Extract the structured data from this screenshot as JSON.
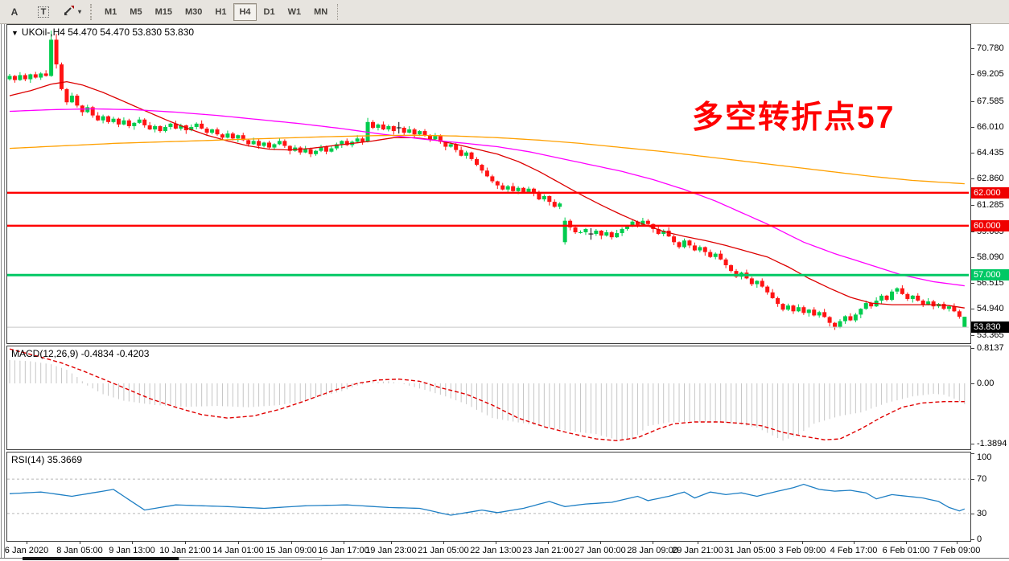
{
  "toolbar": {
    "a_label": "A",
    "t_label": "T",
    "timeframes": [
      "M1",
      "M5",
      "M15",
      "M30",
      "H1",
      "H4",
      "D1",
      "W1",
      "MN"
    ],
    "active_timeframe": "H4"
  },
  "chart": {
    "title": "UKOil-,H4  54.470 54.470 53.830 53.830",
    "symbol": "UKOil-",
    "period": "H4",
    "ohlc": {
      "open": "54.470",
      "high": "54.470",
      "low": "53.830",
      "close": "53.830"
    },
    "annotation": {
      "text": "多空转折点57",
      "color": "#FF0000"
    },
    "y_axis_labels": [
      "70.780",
      "69.205",
      "67.585",
      "66.010",
      "64.435",
      "62.860",
      "61.285",
      "59.665",
      "58.090",
      "56.515",
      "54.940",
      "53.365"
    ],
    "level_badges": [
      {
        "value": "62.000",
        "price": 62.0,
        "bg": "#EF0000"
      },
      {
        "value": "60.000",
        "price": 60.0,
        "bg": "#EF0000"
      },
      {
        "value": "57.000",
        "price": 57.0,
        "bg": "#00C864"
      },
      {
        "value": "53.830",
        "price": 53.83,
        "bg": "#000000"
      }
    ]
  },
  "macd": {
    "text": "MACD(12,26,9) -0.4834 -0.4203",
    "main_value": "-0.4834",
    "signal_value": "-0.4203",
    "axis": [
      "0.8137",
      "0.00",
      "-1.3894"
    ]
  },
  "rsi": {
    "text": "RSI(14) 35.3669",
    "value": "35.3669",
    "axis": [
      "100",
      "70",
      "30",
      "0"
    ],
    "levels": [
      70,
      30
    ]
  },
  "x_axis": {
    "labels": [
      "6 Jan 2020",
      "8 Jan 05:00",
      "9 Jan 13:00",
      "10 Jan 21:00",
      "14 Jan 01:00",
      "15 Jan 09:00",
      "16 Jan 17:00",
      "19 Jan 23:00",
      "21 Jan 05:00",
      "22 Jan 13:00",
      "23 Jan 21:00",
      "27 Jan 00:00",
      "28 Jan 09:00",
      "29 Jan 21:00",
      "31 Jan 05:00",
      "3 Feb 09:00",
      "4 Feb 17:00",
      "6 Feb 01:00",
      "7 Feb 09:00"
    ],
    "centers": [
      25,
      91,
      156,
      222,
      288,
      354,
      419,
      478,
      543,
      608,
      673,
      738,
      803,
      859,
      924,
      989,
      1053,
      1118,
      1181
    ]
  },
  "chart_data": {
    "type": "candlestick",
    "symbol": "UKOil",
    "timeframe": "H4",
    "price_view": [
      52.96,
      72.2
    ],
    "levels": [
      62.0,
      60.0,
      57.0
    ],
    "current_price": 53.83,
    "open_first": 68.9,
    "open_overrides": {
      "107": 59.0
    },
    "closes": [
      69.1,
      68.85,
      69.15,
      68.9,
      69.2,
      69.0,
      69.25,
      69.1,
      71.3,
      69.8,
      68.3,
      67.5,
      67.9,
      67.3,
      66.9,
      67.2,
      66.7,
      66.4,
      66.65,
      66.3,
      66.5,
      66.15,
      66.4,
      66.05,
      66.25,
      66.45,
      66.1,
      65.85,
      66.05,
      65.75,
      66.0,
      66.2,
      65.9,
      66.1,
      65.8,
      66.0,
      66.2,
      65.9,
      65.65,
      65.85,
      65.55,
      65.35,
      65.6,
      65.3,
      65.5,
      65.2,
      64.95,
      65.15,
      64.85,
      65.05,
      64.75,
      64.95,
      65.15,
      64.85,
      64.55,
      64.75,
      64.45,
      64.65,
      64.35,
      64.55,
      64.8,
      64.5,
      64.7,
      64.95,
      65.15,
      64.9,
      65.1,
      65.3,
      65.1,
      66.3,
      65.95,
      66.15,
      65.85,
      66.05,
      65.75,
      65.95,
      65.65,
      65.85,
      65.55,
      65.75,
      65.5,
      65.25,
      65.45,
      65.1,
      64.8,
      64.95,
      64.6,
      64.25,
      64.45,
      64.05,
      63.7,
      63.35,
      63.0,
      62.7,
      62.45,
      62.2,
      62.4,
      62.1,
      62.3,
      62.05,
      62.25,
      61.95,
      61.6,
      61.8,
      61.45,
      61.15,
      61.35,
      60.3,
      59.9,
      59.6,
      59.6,
      59.8,
      59.5,
      59.7,
      59.4,
      59.6,
      59.3,
      59.55,
      59.8,
      60.0,
      60.25,
      60.05,
      60.3,
      60.1,
      59.8,
      59.5,
      59.7,
      59.35,
      59.0,
      58.7,
      59.1,
      58.8,
      58.5,
      58.7,
      58.4,
      58.1,
      58.3,
      57.95,
      57.6,
      57.25,
      56.9,
      57.15,
      56.8,
      56.45,
      56.65,
      56.3,
      55.95,
      55.6,
      55.25,
      54.9,
      55.15,
      54.8,
      55.05,
      54.7,
      54.9,
      54.55,
      54.75,
      54.45,
      54.1,
      53.85,
      54.2,
      54.5,
      54.25,
      54.6,
      54.95,
      55.3,
      55.1,
      55.45,
      55.75,
      55.5,
      56.0,
      56.2,
      55.85,
      55.55,
      55.75,
      55.45,
      55.2,
      55.4,
      55.1,
      55.25,
      54.95,
      55.1,
      54.8,
      54.47,
      53.83
    ],
    "wick_up_cycle": [
      0.12,
      0.06,
      0.18,
      0.1,
      0.04,
      0.15,
      0.08,
      0.2,
      0.1,
      0.05
    ],
    "wick_dn_cycle": [
      0.08,
      0.16,
      0.05,
      0.12,
      0.22,
      0.06,
      0.14,
      0.04,
      0.18,
      0.1
    ],
    "wick_overrides": {
      "8": [
        0.55,
        0.05
      ],
      "9": [
        0.35,
        0.25
      ],
      "69": [
        0.25,
        0.04
      ],
      "107": [
        0.2,
        0.15
      ],
      "158": [
        0.06,
        0.22
      ],
      "159": [
        0.05,
        0.18
      ],
      "184": [
        0.0,
        0.0
      ]
    },
    "doji_indices": [
      75,
      112
    ],
    "color_overrides": {
      "184": "up"
    },
    "ma_fast_red": [
      [
        0,
        67.9
      ],
      [
        4,
        68.2
      ],
      [
        8,
        68.6
      ],
      [
        11,
        68.75
      ],
      [
        14,
        68.55
      ],
      [
        18,
        68.1
      ],
      [
        22,
        67.55
      ],
      [
        26,
        67.0
      ],
      [
        30,
        66.45
      ],
      [
        34,
        65.95
      ],
      [
        38,
        65.5
      ],
      [
        42,
        65.15
      ],
      [
        46,
        64.85
      ],
      [
        50,
        64.65
      ],
      [
        54,
        64.6
      ],
      [
        58,
        64.7
      ],
      [
        62,
        64.85
      ],
      [
        66,
        65.0
      ],
      [
        70,
        65.15
      ],
      [
        74,
        65.35
      ],
      [
        78,
        65.35
      ],
      [
        82,
        65.2
      ],
      [
        86,
        64.95
      ],
      [
        90,
        64.65
      ],
      [
        94,
        64.35
      ],
      [
        98,
        63.9
      ],
      [
        102,
        63.3
      ],
      [
        106,
        62.6
      ],
      [
        110,
        61.9
      ],
      [
        114,
        61.25
      ],
      [
        118,
        60.65
      ],
      [
        122,
        60.1
      ],
      [
        126,
        59.65
      ],
      [
        130,
        59.35
      ],
      [
        134,
        59.1
      ],
      [
        138,
        58.8
      ],
      [
        142,
        58.45
      ],
      [
        146,
        58.1
      ],
      [
        150,
        57.5
      ],
      [
        154,
        56.8
      ],
      [
        158,
        56.2
      ],
      [
        162,
        55.65
      ],
      [
        166,
        55.3
      ],
      [
        170,
        55.2
      ],
      [
        174,
        55.2
      ],
      [
        178,
        55.2
      ],
      [
        181,
        55.15
      ],
      [
        184,
        55.0
      ]
    ],
    "ma_mid_magenta": [
      [
        0,
        66.95
      ],
      [
        8,
        67.05
      ],
      [
        16,
        67.1
      ],
      [
        24,
        67.05
      ],
      [
        32,
        66.9
      ],
      [
        40,
        66.7
      ],
      [
        48,
        66.45
      ],
      [
        56,
        66.2
      ],
      [
        64,
        65.9
      ],
      [
        72,
        65.55
      ],
      [
        80,
        65.25
      ],
      [
        88,
        65.0
      ],
      [
        94,
        64.8
      ],
      [
        100,
        64.5
      ],
      [
        106,
        64.1
      ],
      [
        112,
        63.7
      ],
      [
        118,
        63.3
      ],
      [
        124,
        62.8
      ],
      [
        130,
        62.2
      ],
      [
        136,
        61.5
      ],
      [
        141,
        60.8
      ],
      [
        146,
        60.1
      ],
      [
        153,
        59.0
      ],
      [
        159,
        58.3
      ],
      [
        165,
        57.7
      ],
      [
        172,
        57.0
      ],
      [
        178,
        56.6
      ],
      [
        184,
        56.35
      ]
    ],
    "ma_slow_orange": [
      [
        0,
        64.7
      ],
      [
        10,
        64.85
      ],
      [
        20,
        65.0
      ],
      [
        30,
        65.1
      ],
      [
        40,
        65.2
      ],
      [
        50,
        65.3
      ],
      [
        60,
        65.4
      ],
      [
        70,
        65.47
      ],
      [
        78,
        65.5
      ],
      [
        86,
        65.45
      ],
      [
        94,
        65.35
      ],
      [
        102,
        65.2
      ],
      [
        110,
        65.0
      ],
      [
        118,
        64.75
      ],
      [
        126,
        64.5
      ],
      [
        134,
        64.2
      ],
      [
        142,
        63.9
      ],
      [
        150,
        63.6
      ],
      [
        158,
        63.3
      ],
      [
        166,
        63.0
      ],
      [
        174,
        62.75
      ],
      [
        184,
        62.55
      ]
    ],
    "macd_axis": {
      "max": 0.8137,
      "min": -1.3894,
      "final_hist": -0.4834,
      "final_signal": -0.4203
    },
    "macd_hist": [
      [
        0,
        0.55
      ],
      [
        4,
        0.52
      ],
      [
        8,
        0.45
      ],
      [
        11,
        0.32
      ],
      [
        13,
        0.15
      ],
      [
        15,
        -0.05
      ],
      [
        18,
        -0.25
      ],
      [
        22,
        -0.4
      ],
      [
        28,
        -0.5
      ],
      [
        34,
        -0.54
      ],
      [
        40,
        -0.52
      ],
      [
        46,
        -0.55
      ],
      [
        52,
        -0.5
      ],
      [
        56,
        -0.42
      ],
      [
        60,
        -0.3
      ],
      [
        64,
        -0.18
      ],
      [
        67,
        -0.05
      ],
      [
        70,
        0.03
      ],
      [
        73,
        0.05
      ],
      [
        76,
        -0.02
      ],
      [
        80,
        -0.15
      ],
      [
        84,
        -0.3
      ],
      [
        88,
        -0.48
      ],
      [
        93,
        -0.8
      ],
      [
        98,
        -0.9
      ],
      [
        103,
        -1.0
      ],
      [
        108,
        -1.1
      ],
      [
        113,
        -1.17
      ],
      [
        117,
        -1.3
      ],
      [
        120,
        -1.3
      ],
      [
        123,
        -0.98
      ],
      [
        127,
        -0.9
      ],
      [
        132,
        -0.88
      ],
      [
        137,
        -0.9
      ],
      [
        141,
        -0.95
      ],
      [
        144,
        -1.02
      ],
      [
        147,
        -1.2
      ],
      [
        149,
        -1.32
      ],
      [
        152,
        -1.18
      ],
      [
        155,
        -0.93
      ],
      [
        160,
        -0.75
      ],
      [
        164,
        -0.67
      ],
      [
        169,
        -0.45
      ],
      [
        174,
        -0.3
      ],
      [
        178,
        -0.24
      ],
      [
        180,
        -0.26
      ],
      [
        182,
        -0.35
      ],
      [
        184,
        -0.48
      ]
    ],
    "macd_signal": [
      [
        0,
        0.81
      ],
      [
        6,
        0.62
      ],
      [
        10,
        0.48
      ],
      [
        14,
        0.3
      ],
      [
        18,
        0.1
      ],
      [
        22,
        -0.1
      ],
      [
        27,
        -0.35
      ],
      [
        32,
        -0.55
      ],
      [
        37,
        -0.72
      ],
      [
        42,
        -0.8
      ],
      [
        47,
        -0.75
      ],
      [
        52,
        -0.6
      ],
      [
        57,
        -0.4
      ],
      [
        62,
        -0.18
      ],
      [
        67,
        0.0
      ],
      [
        71,
        0.08
      ],
      [
        75,
        0.1
      ],
      [
        79,
        0.05
      ],
      [
        83,
        -0.1
      ],
      [
        88,
        -0.25
      ],
      [
        93,
        -0.5
      ],
      [
        98,
        -0.8
      ],
      [
        103,
        -1.0
      ],
      [
        108,
        -1.15
      ],
      [
        113,
        -1.28
      ],
      [
        117,
        -1.32
      ],
      [
        121,
        -1.25
      ],
      [
        125,
        -1.05
      ],
      [
        128,
        -0.93
      ],
      [
        132,
        -0.89
      ],
      [
        137,
        -0.89
      ],
      [
        141,
        -0.92
      ],
      [
        145,
        -0.98
      ],
      [
        149,
        -1.13
      ],
      [
        153,
        -1.22
      ],
      [
        157,
        -1.3
      ],
      [
        160,
        -1.28
      ],
      [
        164,
        -1.05
      ],
      [
        168,
        -0.78
      ],
      [
        172,
        -0.55
      ],
      [
        176,
        -0.45
      ],
      [
        180,
        -0.42
      ],
      [
        184,
        -0.42
      ]
    ],
    "rsi_range": [
      0,
      100
    ],
    "rsi_series": [
      [
        0,
        53
      ],
      [
        6,
        55
      ],
      [
        12,
        50
      ],
      [
        20,
        58
      ],
      [
        26,
        34
      ],
      [
        32,
        40
      ],
      [
        42,
        38
      ],
      [
        49,
        36
      ],
      [
        57,
        39
      ],
      [
        65,
        40
      ],
      [
        73,
        37
      ],
      [
        79,
        36
      ],
      [
        85,
        28
      ],
      [
        91,
        34
      ],
      [
        94,
        31
      ],
      [
        99,
        36
      ],
      [
        104,
        44
      ],
      [
        107,
        38
      ],
      [
        111,
        41
      ],
      [
        116,
        43
      ],
      [
        121,
        50
      ],
      [
        123,
        45
      ],
      [
        127,
        50
      ],
      [
        130,
        55
      ],
      [
        132,
        48
      ],
      [
        135,
        55
      ],
      [
        138,
        52
      ],
      [
        141,
        54
      ],
      [
        144,
        50
      ],
      [
        148,
        56
      ],
      [
        151,
        60
      ],
      [
        153,
        64
      ],
      [
        156,
        58
      ],
      [
        159,
        56
      ],
      [
        162,
        57
      ],
      [
        165,
        54
      ],
      [
        167,
        47
      ],
      [
        170,
        52
      ],
      [
        173,
        50
      ],
      [
        176,
        48
      ],
      [
        179,
        44
      ],
      [
        181,
        37
      ],
      [
        183,
        33
      ],
      [
        184,
        35.37
      ]
    ],
    "colors": {
      "up": "#00CC4E",
      "down": "#FF1414",
      "doji": "#000000",
      "ma_fast": "#DD0000",
      "ma_mid": "#FF00FF",
      "ma_slow": "#FFA000",
      "hist": "#C6C6C6",
      "signal": "#E00000",
      "rsi": "#1E7FC4",
      "level_red": "#FF0000",
      "level_green": "#00C864",
      "price_line": "#C8C8C8",
      "rsi_dash": "#B8B8B8"
    }
  }
}
